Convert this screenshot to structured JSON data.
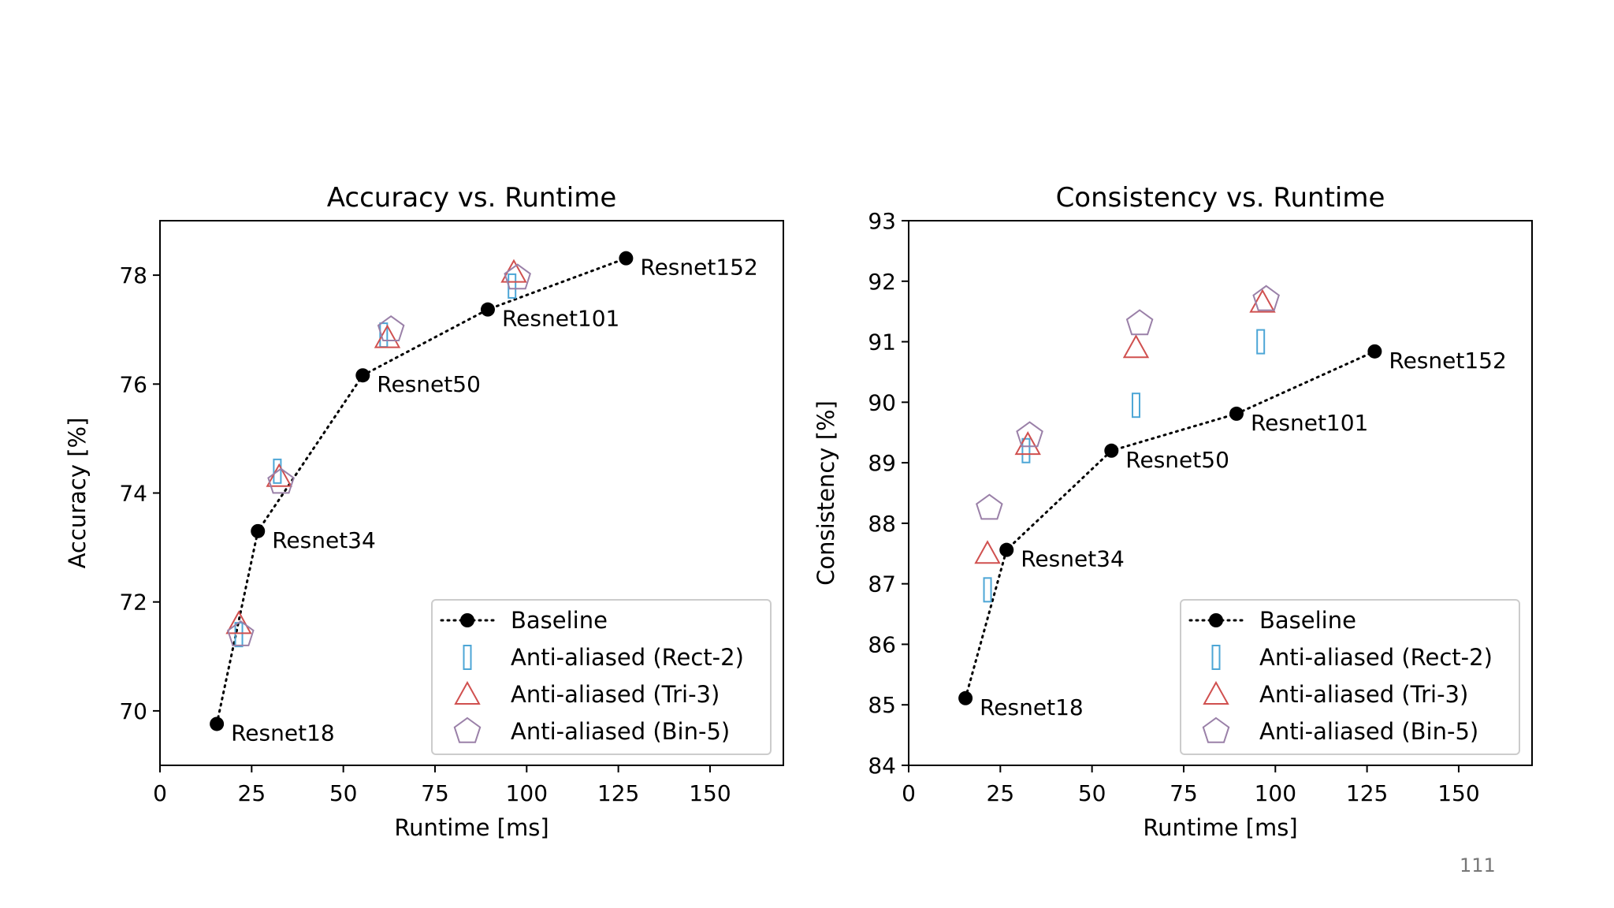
{
  "page": {
    "number": "111"
  },
  "colors": {
    "baseline": "#000000",
    "rect2": "#4da6d6",
    "tri3": "#d0504f",
    "bin5": "#9a80a8",
    "axis": "#000000",
    "legend_border": "#cccccc"
  },
  "chart_data": [
    {
      "type": "scatter",
      "title": "Accuracy vs. Runtime",
      "xlabel": "Runtime [ms]",
      "ylabel": "Accuracy [%]",
      "xlim": [
        0,
        170
      ],
      "ylim": [
        69.0,
        79.0
      ],
      "xticks": [
        0,
        25,
        50,
        75,
        100,
        125,
        150
      ],
      "yticks": [
        70,
        72,
        74,
        76,
        78
      ],
      "grid": false,
      "legend_position": "lower-right",
      "legend": [
        "Baseline",
        "Anti-aliased (Rect-2)",
        "Anti-aliased (Tri-3)",
        "Anti-aliased (Bin-5)"
      ],
      "series": [
        {
          "name": "Baseline",
          "marker": "circle",
          "line": "dotted",
          "x": [
            15.5,
            26.7,
            55.3,
            89.4,
            127.1
          ],
          "y": [
            69.76,
            73.3,
            76.16,
            77.37,
            78.31
          ],
          "labels": [
            "Resnet18",
            "Resnet34",
            "Resnet50",
            "Resnet101",
            "Resnet152"
          ]
        },
        {
          "name": "Anti-aliased (Rect-2)",
          "marker": "rect",
          "x": [
            21.5,
            32.0,
            61.0,
            96.0
          ],
          "y": [
            71.4,
            74.4,
            76.9,
            77.8
          ]
        },
        {
          "name": "Anti-aliased (Tri-3)",
          "marker": "triangle",
          "x": [
            21.5,
            32.5,
            62.0,
            96.5
          ],
          "y": [
            71.6,
            74.3,
            76.85,
            78.05
          ]
        },
        {
          "name": "Anti-aliased (Bin-5)",
          "marker": "pentagon",
          "x": [
            22.0,
            33.0,
            63.0,
            97.5
          ],
          "y": [
            71.4,
            74.2,
            77.0,
            77.95
          ]
        }
      ]
    },
    {
      "type": "scatter",
      "title": "Consistency vs. Runtime",
      "xlabel": "Runtime [ms]",
      "ylabel": "Consistency [%]",
      "xlim": [
        0,
        170
      ],
      "ylim": [
        84,
        93
      ],
      "xticks": [
        0,
        25,
        50,
        75,
        100,
        125,
        150
      ],
      "yticks": [
        84,
        85,
        86,
        87,
        88,
        89,
        90,
        91,
        92,
        93
      ],
      "grid": false,
      "legend_position": "lower-right",
      "legend": [
        "Baseline",
        "Anti-aliased (Rect-2)",
        "Anti-aliased (Tri-3)",
        "Anti-aliased (Bin-5)"
      ],
      "series": [
        {
          "name": "Baseline",
          "marker": "circle",
          "line": "dotted",
          "x": [
            15.5,
            26.7,
            55.3,
            89.4,
            127.1
          ],
          "y": [
            85.11,
            87.56,
            89.2,
            89.81,
            90.84
          ],
          "labels": [
            "Resnet18",
            "Resnet34",
            "Resnet50",
            "Resnet101",
            "Resnet152"
          ]
        },
        {
          "name": "Anti-aliased (Rect-2)",
          "marker": "rect",
          "x": [
            21.5,
            32.0,
            62.0,
            96.0
          ],
          "y": [
            86.9,
            89.2,
            89.95,
            91.0
          ]
        },
        {
          "name": "Anti-aliased (Tri-3)",
          "marker": "triangle",
          "x": [
            21.5,
            32.5,
            62.0,
            96.5
          ],
          "y": [
            87.5,
            89.3,
            90.9,
            91.65
          ]
        },
        {
          "name": "Anti-aliased (Bin-5)",
          "marker": "pentagon",
          "x": [
            22.0,
            33.0,
            63.0,
            97.5
          ],
          "y": [
            88.25,
            89.45,
            91.3,
            91.7
          ]
        }
      ]
    }
  ]
}
